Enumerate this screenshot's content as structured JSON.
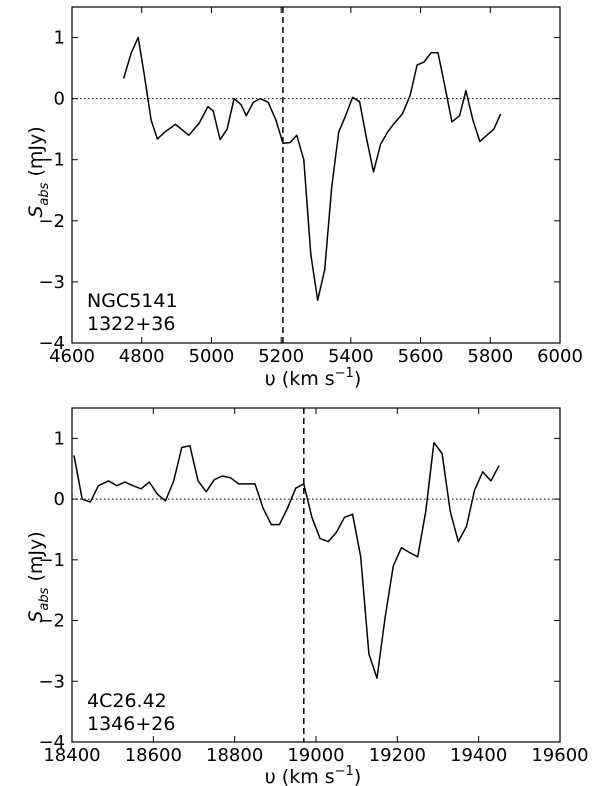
{
  "chart_data": [
    {
      "type": "line",
      "annotation": [
        "NGC5141",
        "1322+36"
      ],
      "xlabel": "υ (km s⁻¹)",
      "xlabel_main": "υ (km s",
      "xlabel_exp": "−1",
      "xlabel_close": ")",
      "ylabel_main": "S",
      "ylabel_sub": "abs",
      "ylabel_unit": " (mJy)",
      "xlim": [
        4600,
        6000
      ],
      "ylim": [
        -4,
        1.5
      ],
      "xticks": [
        4600,
        4800,
        5000,
        5200,
        5400,
        5600,
        5800,
        6000
      ],
      "xtick_labels": [
        "4600",
        "4800",
        "5000",
        "5200",
        "5400",
        "5600",
        "5800",
        "6000"
      ],
      "yticks": [
        1,
        0,
        -1,
        -2,
        -3,
        -4
      ],
      "ytick_labels": [
        "1",
        "0",
        "−1",
        "−2",
        "−3",
        "−4"
      ],
      "vline": 5205,
      "hline": 0,
      "series": [
        {
          "x": [
            4748,
            4770,
            4790,
            4807,
            4827,
            4845,
            4866,
            4897,
            4935,
            4965,
            4990,
            5005,
            5025,
            5045,
            5065,
            5085,
            5100,
            5120,
            5140,
            5163,
            5185,
            5205,
            5225,
            5245,
            5265,
            5285,
            5305,
            5325,
            5345,
            5365,
            5385,
            5405,
            5425,
            5445,
            5465,
            5485,
            5505,
            5525,
            5548,
            5570,
            5590,
            5610,
            5630,
            5650,
            5668,
            5690,
            5712,
            5730,
            5750,
            5770,
            5790,
            5810,
            5830
          ],
          "y": [
            0.33,
            0.75,
            1.0,
            0.4,
            -0.35,
            -0.66,
            -0.55,
            -0.42,
            -0.6,
            -0.4,
            -0.13,
            -0.2,
            -0.67,
            -0.5,
            0.0,
            -0.1,
            -0.28,
            -0.06,
            0.0,
            -0.06,
            -0.35,
            -0.73,
            -0.72,
            -0.6,
            -1.0,
            -2.55,
            -3.3,
            -2.8,
            -1.45,
            -0.55,
            -0.28,
            0.02,
            -0.05,
            -0.65,
            -1.2,
            -0.75,
            -0.55,
            -0.4,
            -0.25,
            0.05,
            0.55,
            0.6,
            0.75,
            0.75,
            0.25,
            -0.38,
            -0.28,
            0.13,
            -0.35,
            -0.7,
            -0.6,
            -0.5,
            -0.25
          ]
        }
      ]
    },
    {
      "type": "line",
      "annotation": [
        "4C26.42",
        "1346+26"
      ],
      "xlabel": "υ (km s⁻¹)",
      "xlabel_main": "υ (km s",
      "xlabel_exp": "−1",
      "xlabel_close": ")",
      "ylabel_main": "S",
      "ylabel_sub": "abs",
      "ylabel_unit": " (mJy)",
      "xlim": [
        18400,
        19600
      ],
      "ylim": [
        -4,
        1.5
      ],
      "xticks": [
        18400,
        18600,
        18800,
        19000,
        19200,
        19400,
        19600
      ],
      "xtick_labels": [
        "18400",
        "18600",
        "18800",
        "19000",
        "19200",
        "19400",
        "19600"
      ],
      "yticks": [
        1,
        0,
        -1,
        -2,
        -3,
        -4
      ],
      "ytick_labels": [
        "1",
        "0",
        "−1",
        "−2",
        "−3",
        "−4"
      ],
      "vline": 18970,
      "hline": 0,
      "series": [
        {
          "x": [
            18405,
            18425,
            18445,
            18465,
            18490,
            18510,
            18530,
            18550,
            18570,
            18590,
            18610,
            18630,
            18650,
            18670,
            18690,
            18710,
            18730,
            18750,
            18770,
            18790,
            18810,
            18830,
            18850,
            18870,
            18890,
            18910,
            18930,
            18950,
            18970,
            18990,
            19010,
            19030,
            19050,
            19070,
            19090,
            19110,
            19130,
            19150,
            19170,
            19190,
            19210,
            19230,
            19250,
            19270,
            19290,
            19310,
            19330,
            19350,
            19370,
            19390,
            19410,
            19430,
            19450
          ],
          "y": [
            0.72,
            0.0,
            -0.05,
            0.22,
            0.3,
            0.22,
            0.28,
            0.22,
            0.17,
            0.28,
            0.08,
            -0.03,
            0.3,
            0.85,
            0.88,
            0.3,
            0.12,
            0.32,
            0.38,
            0.35,
            0.25,
            0.25,
            0.25,
            -0.15,
            -0.42,
            -0.42,
            -0.15,
            0.18,
            0.25,
            -0.3,
            -0.65,
            -0.7,
            -0.55,
            -0.3,
            -0.25,
            -0.95,
            -2.55,
            -2.95,
            -1.95,
            -1.1,
            -0.8,
            -0.88,
            -0.95,
            -0.2,
            0.93,
            0.75,
            -0.2,
            -0.7,
            -0.45,
            0.15,
            0.45,
            0.3,
            0.55
          ]
        }
      ]
    }
  ]
}
